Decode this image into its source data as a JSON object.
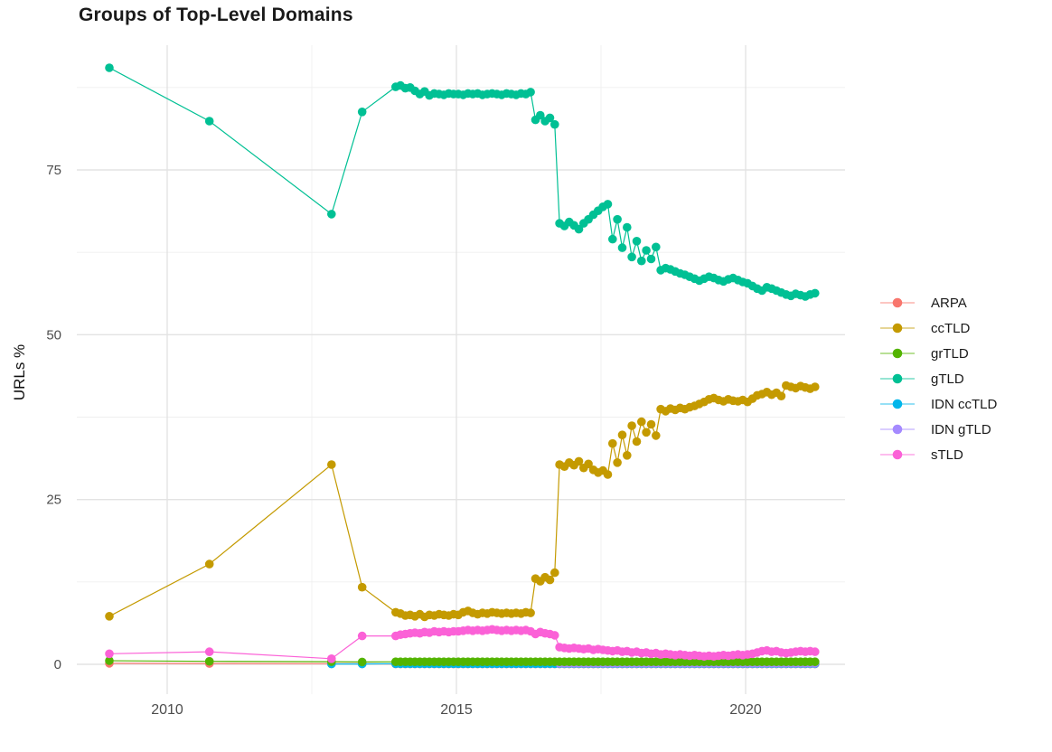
{
  "chart_data": {
    "type": "line",
    "title": "Groups of Top-Level Domains",
    "ylabel": "URLs %",
    "xlabel": "",
    "legend_position": "right",
    "grid": true,
    "x_axis": {
      "ticks": [
        2010,
        2015,
        2020
      ],
      "minor_ticks": [
        2012.5,
        2017.5
      ],
      "range": [
        2008.4,
        2021.7
      ]
    },
    "y_axis": {
      "ticks": [
        0,
        25,
        50,
        75
      ],
      "minor_ticks": [
        12.5,
        37.5,
        62.5,
        87.5
      ],
      "range": [
        -4.5,
        94.0
      ]
    },
    "draw_order": [
      "ARPA",
      "IDN ccTLD",
      "IDN gTLD",
      "grTLD",
      "ccTLD",
      "gTLD",
      "sTLD"
    ],
    "series": [
      {
        "name": "ARPA",
        "color": "#F8766D",
        "sparse": [
          [
            2009.0,
            0.15
          ],
          [
            2010.73,
            0.12
          ],
          [
            2012.84,
            0.1
          ],
          [
            2013.37,
            0.08
          ]
        ],
        "dense": {
          "start": 2013.95,
          "step": 0.08333,
          "n": 88,
          "const": 0.05
        }
      },
      {
        "name": "ccTLD",
        "color": "#C49A00",
        "sparse": [
          [
            2009.0,
            7.3
          ],
          [
            2010.73,
            15.2
          ],
          [
            2012.84,
            30.3
          ],
          [
            2013.37,
            11.7
          ]
        ],
        "dense": {
          "start": 2013.95,
          "step": 0.08333,
          "values": [
            7.9,
            7.7,
            7.4,
            7.5,
            7.3,
            7.6,
            7.2,
            7.5,
            7.4,
            7.6,
            7.5,
            7.4,
            7.6,
            7.5,
            7.9,
            8.1,
            7.8,
            7.6,
            7.8,
            7.7,
            7.9,
            7.8,
            7.7,
            7.8,
            7.7,
            7.8,
            7.7,
            7.9,
            7.8,
            13.0,
            12.6,
            13.2,
            12.8,
            13.9,
            30.3,
            30.0,
            30.6,
            30.2,
            30.8,
            29.8,
            30.4,
            29.5,
            29.1,
            29.4,
            28.8,
            33.5,
            30.6,
            34.8,
            31.7,
            36.2,
            33.8,
            36.8,
            35.2,
            36.4,
            34.7,
            38.7,
            38.4,
            38.8,
            38.6,
            38.9,
            38.7,
            39.0,
            39.2,
            39.5,
            39.8,
            40.2,
            40.4,
            40.1,
            39.9,
            40.2,
            40.0,
            39.9,
            40.1,
            39.8,
            40.3,
            40.8,
            41.0,
            41.3,
            40.9,
            41.2,
            40.7,
            42.3,
            42.1,
            41.9,
            42.2,
            42.0,
            41.8,
            42.1
          ]
        }
      },
      {
        "name": "grTLD",
        "color": "#53B400",
        "sparse": [
          [
            2009.0,
            0.55
          ],
          [
            2010.73,
            0.45
          ],
          [
            2012.84,
            0.4
          ],
          [
            2013.37,
            0.35
          ]
        ],
        "dense": {
          "start": 2013.95,
          "step": 0.08333,
          "n": 88,
          "const": 0.38
        }
      },
      {
        "name": "gTLD",
        "color": "#00C094",
        "sparse": [
          [
            2009.0,
            90.5
          ],
          [
            2010.73,
            82.4
          ],
          [
            2012.84,
            68.3
          ],
          [
            2013.37,
            83.8
          ]
        ],
        "dense": {
          "start": 2013.95,
          "step": 0.08333,
          "values": [
            87.6,
            87.8,
            87.4,
            87.5,
            87.0,
            86.5,
            86.9,
            86.3,
            86.6,
            86.5,
            86.4,
            86.6,
            86.5,
            86.5,
            86.4,
            86.6,
            86.5,
            86.6,
            86.4,
            86.5,
            86.6,
            86.5,
            86.4,
            86.6,
            86.5,
            86.4,
            86.6,
            86.5,
            86.8,
            82.6,
            83.3,
            82.4,
            82.9,
            81.9,
            66.9,
            66.5,
            67.1,
            66.6,
            66.0,
            66.9,
            67.5,
            68.2,
            68.8,
            69.4,
            69.8,
            64.5,
            67.5,
            63.2,
            66.3,
            61.8,
            64.2,
            61.2,
            62.8,
            61.5,
            63.3,
            59.8,
            60.1,
            59.9,
            59.6,
            59.3,
            59.1,
            58.8,
            58.5,
            58.2,
            58.5,
            58.8,
            58.6,
            58.3,
            58.1,
            58.4,
            58.6,
            58.3,
            58.0,
            57.8,
            57.4,
            57.0,
            56.7,
            57.2,
            57.0,
            56.7,
            56.4,
            56.1,
            55.9,
            56.2,
            56.0,
            55.8,
            56.1,
            56.3
          ]
        }
      },
      {
        "name": "IDN ccTLD",
        "color": "#00B6EB",
        "sparse": [
          [
            2012.84,
            0.05
          ],
          [
            2013.37,
            0.06
          ]
        ],
        "dense": {
          "start": 2013.95,
          "step": 0.08333,
          "n": 88,
          "const": 0.1
        }
      },
      {
        "name": "IDN gTLD",
        "color": "#A58AFF",
        "sparse": [],
        "dense": {
          "start": 2016.78,
          "step": 0.08333,
          "n": 54,
          "const": 0.15
        }
      },
      {
        "name": "sTLD",
        "color": "#FB61D7",
        "sparse": [
          [
            2009.0,
            1.6
          ],
          [
            2010.73,
            1.9
          ],
          [
            2012.84,
            0.85
          ],
          [
            2013.37,
            4.3
          ]
        ],
        "dense": {
          "start": 2013.95,
          "step": 0.08333,
          "values": [
            4.3,
            4.5,
            4.6,
            4.7,
            4.8,
            4.7,
            4.9,
            4.8,
            5.0,
            4.9,
            5.0,
            4.9,
            5.0,
            5.0,
            5.1,
            5.2,
            5.1,
            5.2,
            5.1,
            5.2,
            5.3,
            5.2,
            5.1,
            5.2,
            5.1,
            5.2,
            5.1,
            5.2,
            5.0,
            4.6,
            4.9,
            4.7,
            4.6,
            4.4,
            2.6,
            2.5,
            2.4,
            2.5,
            2.4,
            2.3,
            2.4,
            2.2,
            2.3,
            2.2,
            2.1,
            2.0,
            2.1,
            1.9,
            2.0,
            1.8,
            1.9,
            1.7,
            1.8,
            1.6,
            1.7,
            1.5,
            1.6,
            1.5,
            1.4,
            1.5,
            1.4,
            1.3,
            1.4,
            1.3,
            1.2,
            1.3,
            1.2,
            1.3,
            1.4,
            1.3,
            1.4,
            1.5,
            1.4,
            1.5,
            1.6,
            1.8,
            2.0,
            2.1,
            1.9,
            2.0,
            1.8,
            1.7,
            1.8,
            1.9,
            2.0,
            1.9,
            2.0,
            1.9
          ]
        }
      }
    ],
    "style": {
      "grid_major_color": "#E3E3E3",
      "grid_minor_color": "#EFEFEF",
      "axis_text_color": "#4D4D4D",
      "legend_text_color": "#1a1a1a",
      "background": "#FFFFFF"
    }
  }
}
